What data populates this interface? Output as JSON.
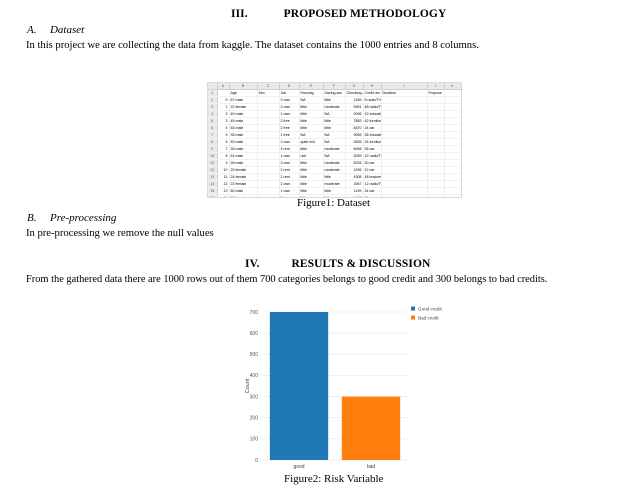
{
  "section3": {
    "numeral": "III.",
    "title": "PROPOSED METHODOLOGY",
    "sub_a": {
      "label": "A.",
      "title": "Dataset"
    },
    "dataset_text": "In this project we are collecting the data from kaggle. The dataset contains the 1000 entries and 8 columns.",
    "sub_b": {
      "label": "B.",
      "title": "Pre-processing"
    },
    "preprocessing_text": "In pre-processing we remove the null values"
  },
  "figure1": {
    "caption": "Figure1: Dataset",
    "column_letters": [
      "A",
      "B",
      "C",
      "D",
      "E",
      "F",
      "G",
      "H",
      "I",
      "J",
      "K",
      "L"
    ],
    "headers": [
      "Age",
      "Sex",
      "Job",
      "Housing",
      "Saving acc",
      "Checking a",
      "Credit am",
      "Duration",
      "Purpose"
    ],
    "rows": [
      [
        "0",
        "67",
        "male",
        "2",
        "own",
        "NA",
        "little",
        "1169",
        "6",
        "radio/TV"
      ],
      [
        "1",
        "22",
        "female",
        "2",
        "own",
        "little",
        "moderate",
        "5951",
        "48",
        "radio/TV"
      ],
      [
        "2",
        "49",
        "male",
        "1",
        "own",
        "little",
        "NA",
        "2096",
        "12",
        "education"
      ],
      [
        "3",
        "45",
        "male",
        "2",
        "free",
        "little",
        "little",
        "7882",
        "42",
        "furniture/equipment"
      ],
      [
        "4",
        "53",
        "male",
        "2",
        "free",
        "little",
        "little",
        "4870",
        "24",
        "car"
      ],
      [
        "5",
        "35",
        "male",
        "1",
        "free",
        "NA",
        "NA",
        "9055",
        "36",
        "education"
      ],
      [
        "6",
        "53",
        "male",
        "2",
        "own",
        "quite rich",
        "NA",
        "2835",
        "24",
        "furniture/equipment"
      ],
      [
        "7",
        "35",
        "male",
        "3",
        "rent",
        "little",
        "moderate",
        "6948",
        "36",
        "car"
      ],
      [
        "8",
        "61",
        "male",
        "1",
        "own",
        "rich",
        "NA",
        "3059",
        "12",
        "radio/TV"
      ],
      [
        "9",
        "28",
        "male",
        "3",
        "own",
        "little",
        "moderate",
        "5234",
        "30",
        "car"
      ],
      [
        "10",
        "25",
        "female",
        "2",
        "rent",
        "little",
        "moderate",
        "1295",
        "12",
        "car"
      ],
      [
        "11",
        "24",
        "female",
        "2",
        "rent",
        "little",
        "little",
        "4308",
        "48",
        "business"
      ],
      [
        "12",
        "22",
        "female",
        "2",
        "own",
        "little",
        "moderate",
        "1567",
        "12",
        "radio/TV"
      ],
      [
        "13",
        "60",
        "male",
        "1",
        "own",
        "little",
        "little",
        "1199",
        "24",
        "car"
      ],
      [
        "14",
        "28",
        "female",
        "2",
        "rent",
        "little",
        "little",
        "1403",
        "15",
        "car"
      ]
    ]
  },
  "section4": {
    "numeral": "IV.",
    "title": "RESULTS & DISCUSSION",
    "text": "From the gathered data there are 1000 rows out of them 700 categories belongs to good credit and 300 belongs to bad credits."
  },
  "figure2": {
    "caption": "Figure2: Risk Variable"
  },
  "chart_data": {
    "type": "bar",
    "categories": [
      "good",
      "bad"
    ],
    "series": [
      {
        "name": "Good credit",
        "values": [
          700,
          null
        ],
        "color": "#1f77b4"
      },
      {
        "name": "Bad credit",
        "values": [
          null,
          300
        ],
        "color": "#ff7f0e"
      }
    ],
    "ylabel": "Count",
    "xlabel": "",
    "ylim": [
      0,
      700
    ],
    "yticks": [
      0,
      100,
      200,
      300,
      400,
      500,
      600,
      700
    ],
    "grid": true,
    "legend": "top-right"
  }
}
